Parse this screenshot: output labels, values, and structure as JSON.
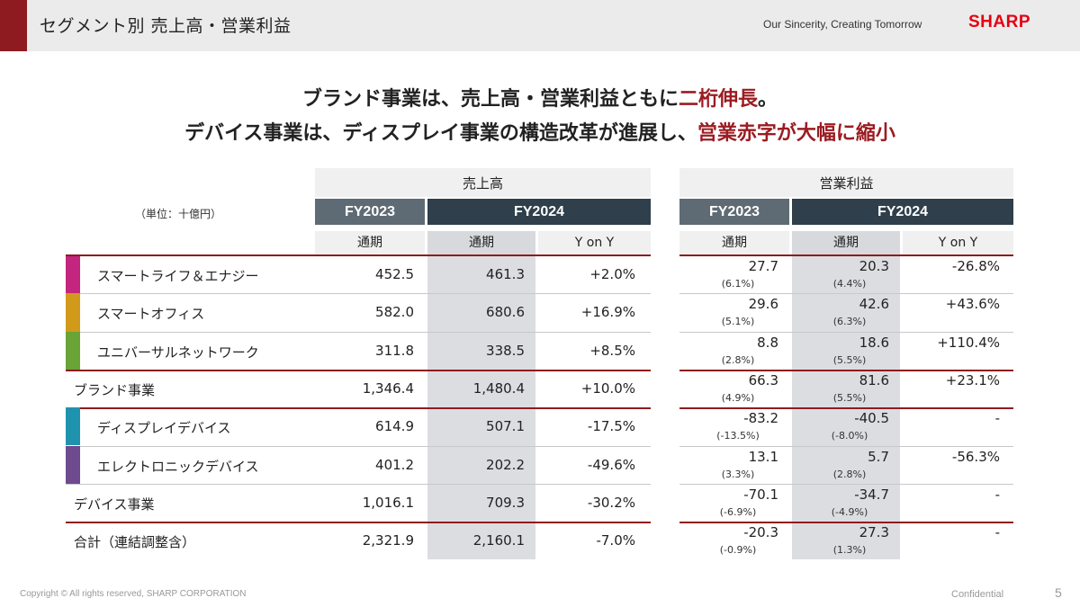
{
  "header": {
    "title": "セグメント別 売上高・営業利益",
    "tagline": "Our Sincerity, Creating Tomorrow",
    "logo": "SHARP"
  },
  "headline": {
    "line1_pre": "ブランド事業は、売上高・営業利益ともに",
    "line1_red": "二桁伸長",
    "line1_post": "。",
    "line2_pre": "デバイス事業は、ディスプレイ事業の構造改革が進展し、",
    "line2_red": "営業赤字が大幅に縮小"
  },
  "table": {
    "unit": "（単位：十億円）",
    "sales_group": "売上高",
    "op_group": "営業利益",
    "fy_prev": "FY2023",
    "fy_cur": "FY2024",
    "col_full_year": "通期",
    "col_yoy": "Y on Y",
    "rows": [
      {
        "label": "スマートライフ＆エナジー",
        "swatch": "#c4257f",
        "s23": "452.5",
        "s24": "461.3",
        "syoy": "+2.0%",
        "o23": "27.7",
        "o23m": "(6.1%)",
        "o24": "20.3",
        "o24m": "(4.4%)",
        "oyoy": "-26.8%"
      },
      {
        "label": "スマートオフィス",
        "swatch": "#d19a1b",
        "s23": "582.0",
        "s24": "680.6",
        "syoy": "+16.9%",
        "o23": "29.6",
        "o23m": "(5.1%)",
        "o24": "42.6",
        "o24m": "(6.3%)",
        "oyoy": "+43.6%"
      },
      {
        "label": "ユニバーサルネットワーク",
        "swatch": "#6aa336",
        "s23": "311.8",
        "s24": "338.5",
        "syoy": "+8.5%",
        "o23": "8.8",
        "o23m": "(2.8%)",
        "o24": "18.6",
        "o24m": "(5.5%)",
        "oyoy": "+110.4%"
      },
      {
        "label": "ブランド事業",
        "swatch": "",
        "s23": "1,346.4",
        "s24": "1,480.4",
        "syoy": "+10.0%",
        "o23": "66.3",
        "o23m": "(4.9%)",
        "o24": "81.6",
        "o24m": "(5.5%)",
        "oyoy": "+23.1%"
      },
      {
        "label": "ディスプレイデバイス",
        "swatch": "#1f93ae",
        "s23": "614.9",
        "s24": "507.1",
        "syoy": "-17.5%",
        "o23": "-83.2",
        "o23m": "(-13.5%)",
        "o24": "-40.5",
        "o24m": "(-8.0%)",
        "oyoy": "-"
      },
      {
        "label": "エレクトロニックデバイス",
        "swatch": "#6e4a8e",
        "s23": "401.2",
        "s24": "202.2",
        "syoy": "-49.6%",
        "o23": "13.1",
        "o23m": "(3.3%)",
        "o24": "5.7",
        "o24m": "(2.8%)",
        "oyoy": "-56.3%"
      },
      {
        "label": "デバイス事業",
        "swatch": "",
        "s23": "1,016.1",
        "s24": "709.3",
        "syoy": "-30.2%",
        "o23": "-70.1",
        "o23m": "(-6.9%)",
        "o24": "-34.7",
        "o24m": "(-4.9%)",
        "oyoy": "-"
      },
      {
        "label": "合計（連結調整含）",
        "swatch": "",
        "s23": "2,321.9",
        "s24": "2,160.1",
        "syoy": "-7.0%",
        "o23": "-20.3",
        "o23m": "(-0.9%)",
        "o24": "27.3",
        "o24m": "(1.3%)",
        "oyoy": "-"
      }
    ]
  },
  "footer": {
    "copyright": "Copyright © All rights reserved, SHARP CORPORATION",
    "confidential": "Confidential",
    "page": "5"
  }
}
